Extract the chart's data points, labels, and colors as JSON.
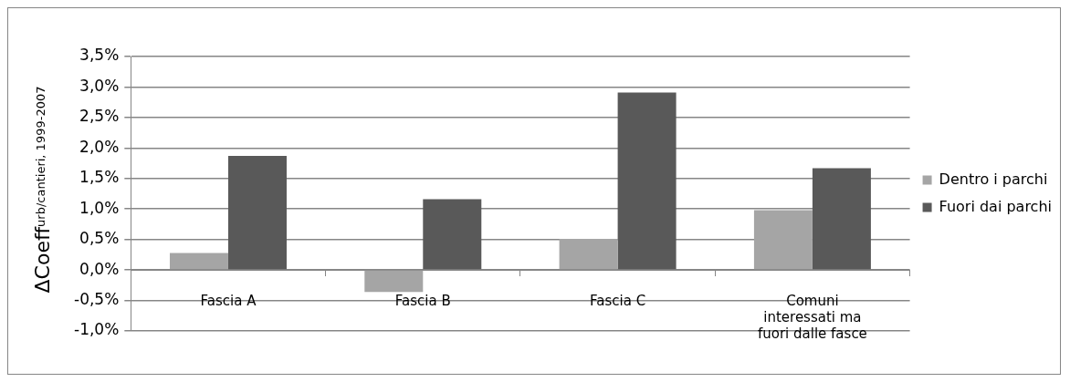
{
  "chart_data": {
    "type": "bar",
    "ylabel": "ΔCoeff$_{urb/cantieri, 1999-2007}$",
    "categories": [
      "Fascia A",
      "Fascia B",
      "Fascia C",
      "Comuni interessati ma fuori dalle fasce"
    ],
    "series": [
      {
        "name": "Dentro i parchi",
        "color": "#a5a5a5",
        "values": [
          0.28,
          -0.36,
          0.51,
          0.98
        ]
      },
      {
        "name": "Fuori dai parchi",
        "color": "#595959",
        "values": [
          1.87,
          1.16,
          2.91,
          1.67
        ]
      }
    ],
    "ylim": [
      -1.0,
      3.5
    ],
    "yticks": [
      {
        "value": -1.0,
        "label": "-1,0%"
      },
      {
        "value": -0.5,
        "label": "-0,5%"
      },
      {
        "value": 0,
        "label": "0,0%"
      },
      {
        "value": 0.5,
        "label": "0,5%"
      },
      {
        "value": 1.0,
        "label": "1,0%"
      },
      {
        "value": 1.5,
        "label": "1,5%"
      },
      {
        "value": 2.0,
        "label": "2,0%"
      },
      {
        "value": 2.5,
        "label": "2,5%"
      },
      {
        "value": 3.0,
        "label": "3,0%"
      },
      {
        "value": 3.5,
        "label": "3,5%"
      }
    ],
    "grid": "y",
    "legend": "right"
  }
}
